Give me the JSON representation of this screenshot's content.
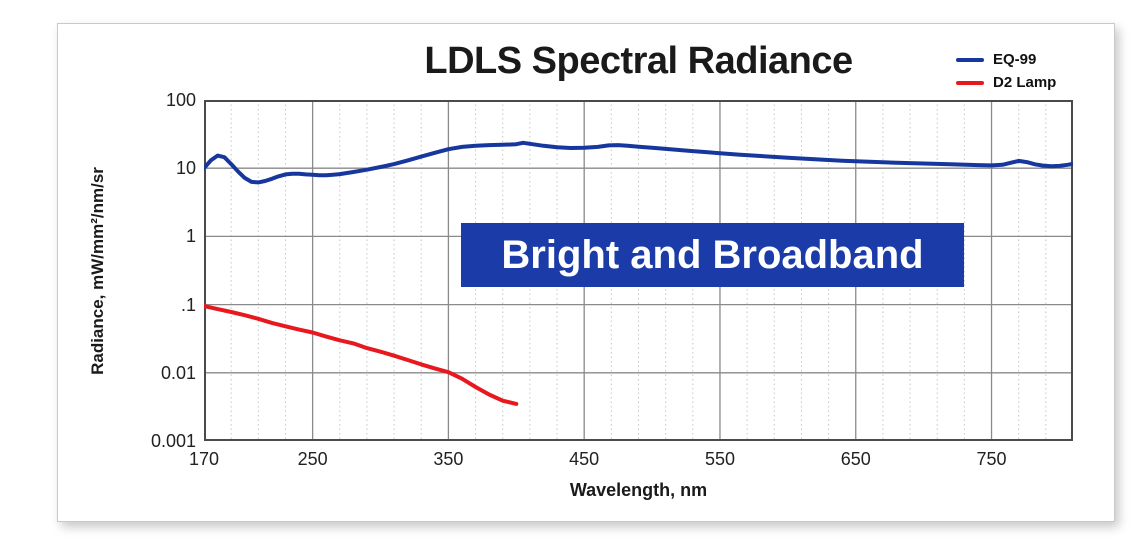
{
  "title": "LDLS Spectral Radiance",
  "banner": {
    "text": "Bright and Broadband"
  },
  "axis": {
    "x_label": "Wavelength, nm",
    "y_label": "Radiance, mW/mm²/nm/sr"
  },
  "legend": {
    "items": [
      {
        "label": "EQ-99",
        "color": "#16379E"
      },
      {
        "label": "D2 Lamp",
        "color": "#E8191E"
      }
    ]
  },
  "colors": {
    "accent_blue": "#16379E",
    "accent_red": "#E8191E",
    "banner_bg": "#1B3CA8",
    "grid_major": "#8a8a8a",
    "grid_minor": "#c6c6c6",
    "frame": "#4a4a4a",
    "text": "#1a1a1a"
  },
  "chart_data": {
    "type": "line",
    "title": "LDLS Spectral Radiance",
    "xlabel": "Wavelength, nm",
    "ylabel": "Radiance, mW/mm²/nm/sr",
    "x_scale": "linear",
    "y_scale": "log",
    "xlim": [
      170,
      810
    ],
    "ylim_log": [
      0.001,
      100
    ],
    "x_minor_step": 20,
    "grid": true,
    "legend_position": "top-right",
    "annotation": "Bright and Broadband",
    "x_ticks": [
      170,
      250,
      350,
      450,
      550,
      650,
      750
    ],
    "y_ticks": [
      {
        "label": "100",
        "value": 100
      },
      {
        "label": "10",
        "value": 10
      },
      {
        "label": "1",
        "value": 1
      },
      {
        "label": ".1",
        "value": 0.1
      },
      {
        "label": "0.01",
        "value": 0.01
      },
      {
        "label": "0.001",
        "value": 0.001
      }
    ],
    "series": [
      {
        "name": "EQ-99",
        "color": "#16379E",
        "x": [
          170,
          175,
          180,
          185,
          190,
          195,
          200,
          205,
          210,
          215,
          220,
          225,
          230,
          235,
          240,
          245,
          250,
          255,
          260,
          265,
          270,
          280,
          290,
          300,
          310,
          320,
          330,
          340,
          350,
          360,
          370,
          380,
          390,
          400,
          405,
          410,
          415,
          420,
          430,
          440,
          450,
          460,
          468,
          475,
          482,
          490,
          500,
          510,
          520,
          530,
          540,
          550,
          565,
          580,
          600,
          620,
          640,
          660,
          680,
          700,
          720,
          740,
          750,
          758,
          764,
          770,
          776,
          782,
          788,
          794,
          800,
          806,
          810
        ],
        "y": [
          10,
          13,
          15.3,
          14.5,
          11.5,
          9,
          7.2,
          6.3,
          6.2,
          6.5,
          7,
          7.6,
          8.1,
          8.3,
          8.3,
          8.1,
          8,
          7.9,
          7.9,
          8,
          8.2,
          8.8,
          9.5,
          10.4,
          11.5,
          13,
          14.8,
          16.8,
          19,
          20.5,
          21.4,
          21.8,
          22,
          22.5,
          23.6,
          22.8,
          22,
          21.3,
          20.3,
          19.8,
          19.9,
          20.5,
          21.6,
          21.8,
          21.4,
          20.7,
          19.9,
          19.2,
          18.5,
          17.8,
          17.2,
          16.6,
          15.8,
          15.1,
          14.2,
          13.5,
          12.9,
          12.4,
          12,
          11.7,
          11.4,
          11.1,
          11,
          11.2,
          12,
          12.8,
          12.3,
          11.4,
          10.9,
          10.7,
          10.8,
          11.2,
          11.6
        ]
      },
      {
        "name": "D2 Lamp",
        "color": "#E8191E",
        "x": [
          170,
          180,
          190,
          200,
          210,
          220,
          230,
          240,
          250,
          260,
          270,
          280,
          290,
          300,
          310,
          320,
          330,
          340,
          350,
          360,
          370,
          380,
          390,
          400
        ],
        "y": [
          0.095,
          0.086,
          0.078,
          0.07,
          0.062,
          0.054,
          0.048,
          0.043,
          0.039,
          0.034,
          0.03,
          0.027,
          0.023,
          0.0204,
          0.0178,
          0.0154,
          0.0133,
          0.0116,
          0.0102,
          0.0082,
          0.0062,
          0.0048,
          0.0039,
          0.0035
        ]
      }
    ]
  }
}
